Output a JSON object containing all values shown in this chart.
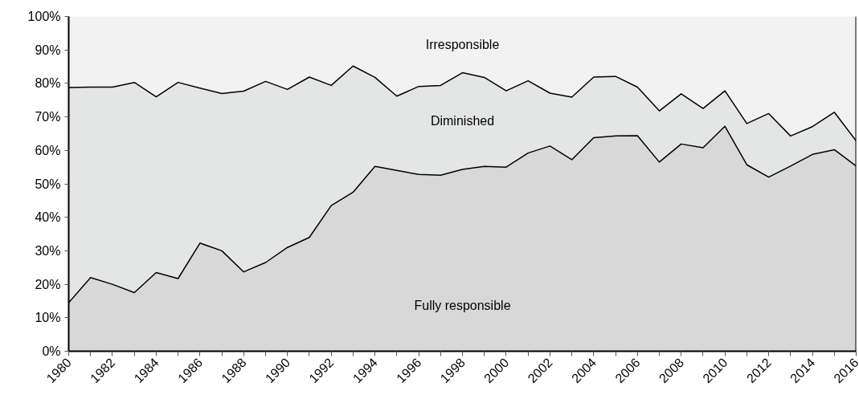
{
  "chart_data": {
    "type": "area",
    "stacked": true,
    "x": [
      1980,
      1981,
      1982,
      1983,
      1984,
      1985,
      1986,
      1987,
      1988,
      1989,
      1990,
      1991,
      1992,
      1993,
      1994,
      1995,
      1996,
      1997,
      1998,
      1999,
      2000,
      2001,
      2002,
      2003,
      2004,
      2005,
      2006,
      2007,
      2008,
      2009,
      2010,
      2011,
      2012,
      2013,
      2014,
      2015,
      2016
    ],
    "series": [
      {
        "name": "Fully responsible",
        "color": "#d8d8d8",
        "values": [
          14.5,
          22,
          20,
          17.5,
          23.5,
          21.7,
          32.3,
          30,
          23.7,
          26.5,
          31,
          34,
          43.5,
          47.5,
          55.2,
          54,
          52.8,
          52.6,
          54.3,
          55.2,
          55,
          59.2,
          61.3,
          57.2,
          63.8,
          64.3,
          64.4,
          56.5,
          61.9,
          60.8,
          67.2,
          55.7,
          52,
          55.3,
          58.8,
          60.2,
          55.3
        ]
      },
      {
        "name": "Diminished",
        "color": "#e4e5e5",
        "values": [
          64.3,
          56.9,
          58.9,
          62.8,
          52.5,
          58.6,
          46.3,
          47,
          54,
          54.1,
          47.2,
          47.9,
          35.9,
          37.7,
          26.6,
          22.2,
          26.3,
          26.8,
          28.9,
          26.6,
          22.8,
          21.6,
          15.8,
          18.7,
          18.1,
          17.8,
          14.5,
          15.3,
          15,
          11.7,
          10.6,
          12.3,
          19,
          9,
          8.3,
          11.2,
          7.5
        ]
      },
      {
        "name": "Irresponsible",
        "color": "#f2f2f2",
        "values": [
          21.2,
          21.1,
          21.1,
          19.7,
          24,
          19.7,
          21.4,
          23,
          22.3,
          19.4,
          21.8,
          18.1,
          20.6,
          14.8,
          18.2,
          23.8,
          20.9,
          20.6,
          16.8,
          18.2,
          22.2,
          19.2,
          22.9,
          24.1,
          18.1,
          17.9,
          21.1,
          28.2,
          23.1,
          27.5,
          22.2,
          32,
          29,
          35.7,
          32.9,
          28.6,
          37.2
        ]
      }
    ],
    "xlim": [
      1980,
      2016
    ],
    "xticks": [
      1980,
      {
        "value": 1981,
        "label": null
      },
      1982,
      {
        "value": 1983,
        "label": null
      },
      1984,
      {
        "value": 1985,
        "label": null
      },
      1986,
      {
        "value": 1987,
        "label": null
      },
      1988,
      {
        "value": 1989,
        "label": null
      },
      1990,
      {
        "value": 1991,
        "label": null
      },
      1992,
      {
        "value": 1993,
        "label": null
      },
      1994,
      {
        "value": 1995,
        "label": null
      },
      1996,
      {
        "value": 1997,
        "label": null
      },
      1998,
      {
        "value": 1999,
        "label": null
      },
      2000,
      {
        "value": 2001,
        "label": null
      },
      2002,
      {
        "value": 2003,
        "label": null
      },
      2004,
      {
        "value": 2005,
        "label": null
      },
      2006,
      {
        "value": 2007,
        "label": null
      },
      2008,
      {
        "value": 2009,
        "label": null
      },
      2010,
      {
        "value": 2011,
        "label": null
      },
      2012,
      {
        "value": 2013,
        "label": null
      },
      2014,
      {
        "value": 2015,
        "label": null
      },
      2016
    ],
    "ylim": [
      0,
      100
    ],
    "yticks": [
      {
        "value": 0,
        "label": "0%"
      },
      {
        "value": 10,
        "label": "10%"
      },
      {
        "value": 20,
        "label": "20%"
      },
      {
        "value": 30,
        "label": "30%"
      },
      {
        "value": 40,
        "label": "40%"
      },
      {
        "value": 50,
        "label": "50%"
      },
      {
        "value": 60,
        "label": "60%"
      },
      {
        "value": 70,
        "label": "70%"
      },
      {
        "value": 80,
        "label": "80%"
      },
      {
        "value": 90,
        "label": "90%"
      },
      {
        "value": 100,
        "label": "100%"
      }
    ]
  }
}
